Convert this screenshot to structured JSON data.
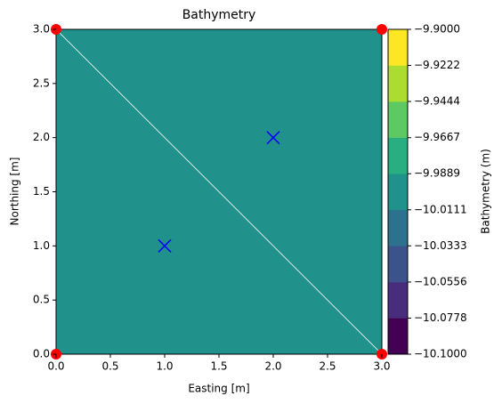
{
  "chart_data": {
    "type": "contour",
    "title": "Bathymetry",
    "xlabel": "Easting [m]",
    "ylabel": "Northing [m]",
    "colorbar_label": "Bathymetry (m)",
    "xlim": [
      0,
      3
    ],
    "ylim": [
      0,
      3
    ],
    "xticks": [
      {
        "value": 0,
        "label": "0.0"
      },
      0.5,
      {
        "value": 1,
        "label": "1.0"
      },
      1.5,
      {
        "value": 2,
        "label": "2.0"
      },
      2.5,
      {
        "value": 3,
        "label": "3.0"
      }
    ],
    "yticks": [
      {
        "value": 0,
        "label": "0.0"
      },
      0.5,
      {
        "value": 1,
        "label": "1.0"
      },
      1.5,
      {
        "value": 2,
        "label": "2.0"
      },
      2.5,
      {
        "value": 3,
        "label": "3.0"
      }
    ],
    "field_value": -10,
    "levels": [
      {
        "value": -10.1,
        "label": "−10.1000"
      },
      {
        "value": -10.0778,
        "label": "−10.0778"
      },
      {
        "value": -10.0556,
        "label": "−10.0556"
      },
      {
        "value": -10.0333,
        "label": "−10.0333"
      },
      {
        "value": -10.0111,
        "label": "−10.0111"
      },
      {
        "value": -9.9889,
        "label": "−9.9889"
      },
      {
        "value": -9.9667,
        "label": "−9.9667"
      },
      {
        "value": -9.9444,
        "label": "−9.9444"
      },
      {
        "value": -9.9222,
        "label": "−9.9222"
      },
      {
        "value": -9.9,
        "label": "−9.9000"
      }
    ],
    "level_colors": [
      "#440154",
      "#472d7b",
      "#3b528b",
      "#2c728e",
      "#21918c",
      "#28ae80",
      "#5ec962",
      "#addc30",
      "#fde725"
    ],
    "nodes": {
      "x": [
        0,
        3,
        0,
        3
      ],
      "y": [
        0,
        0,
        3,
        3
      ],
      "color": "#ff0000"
    },
    "points": {
      "x": [
        1,
        2
      ],
      "y": [
        1,
        2
      ],
      "color": "#0000ff"
    },
    "mesh_edge_color": "#ffffff"
  }
}
